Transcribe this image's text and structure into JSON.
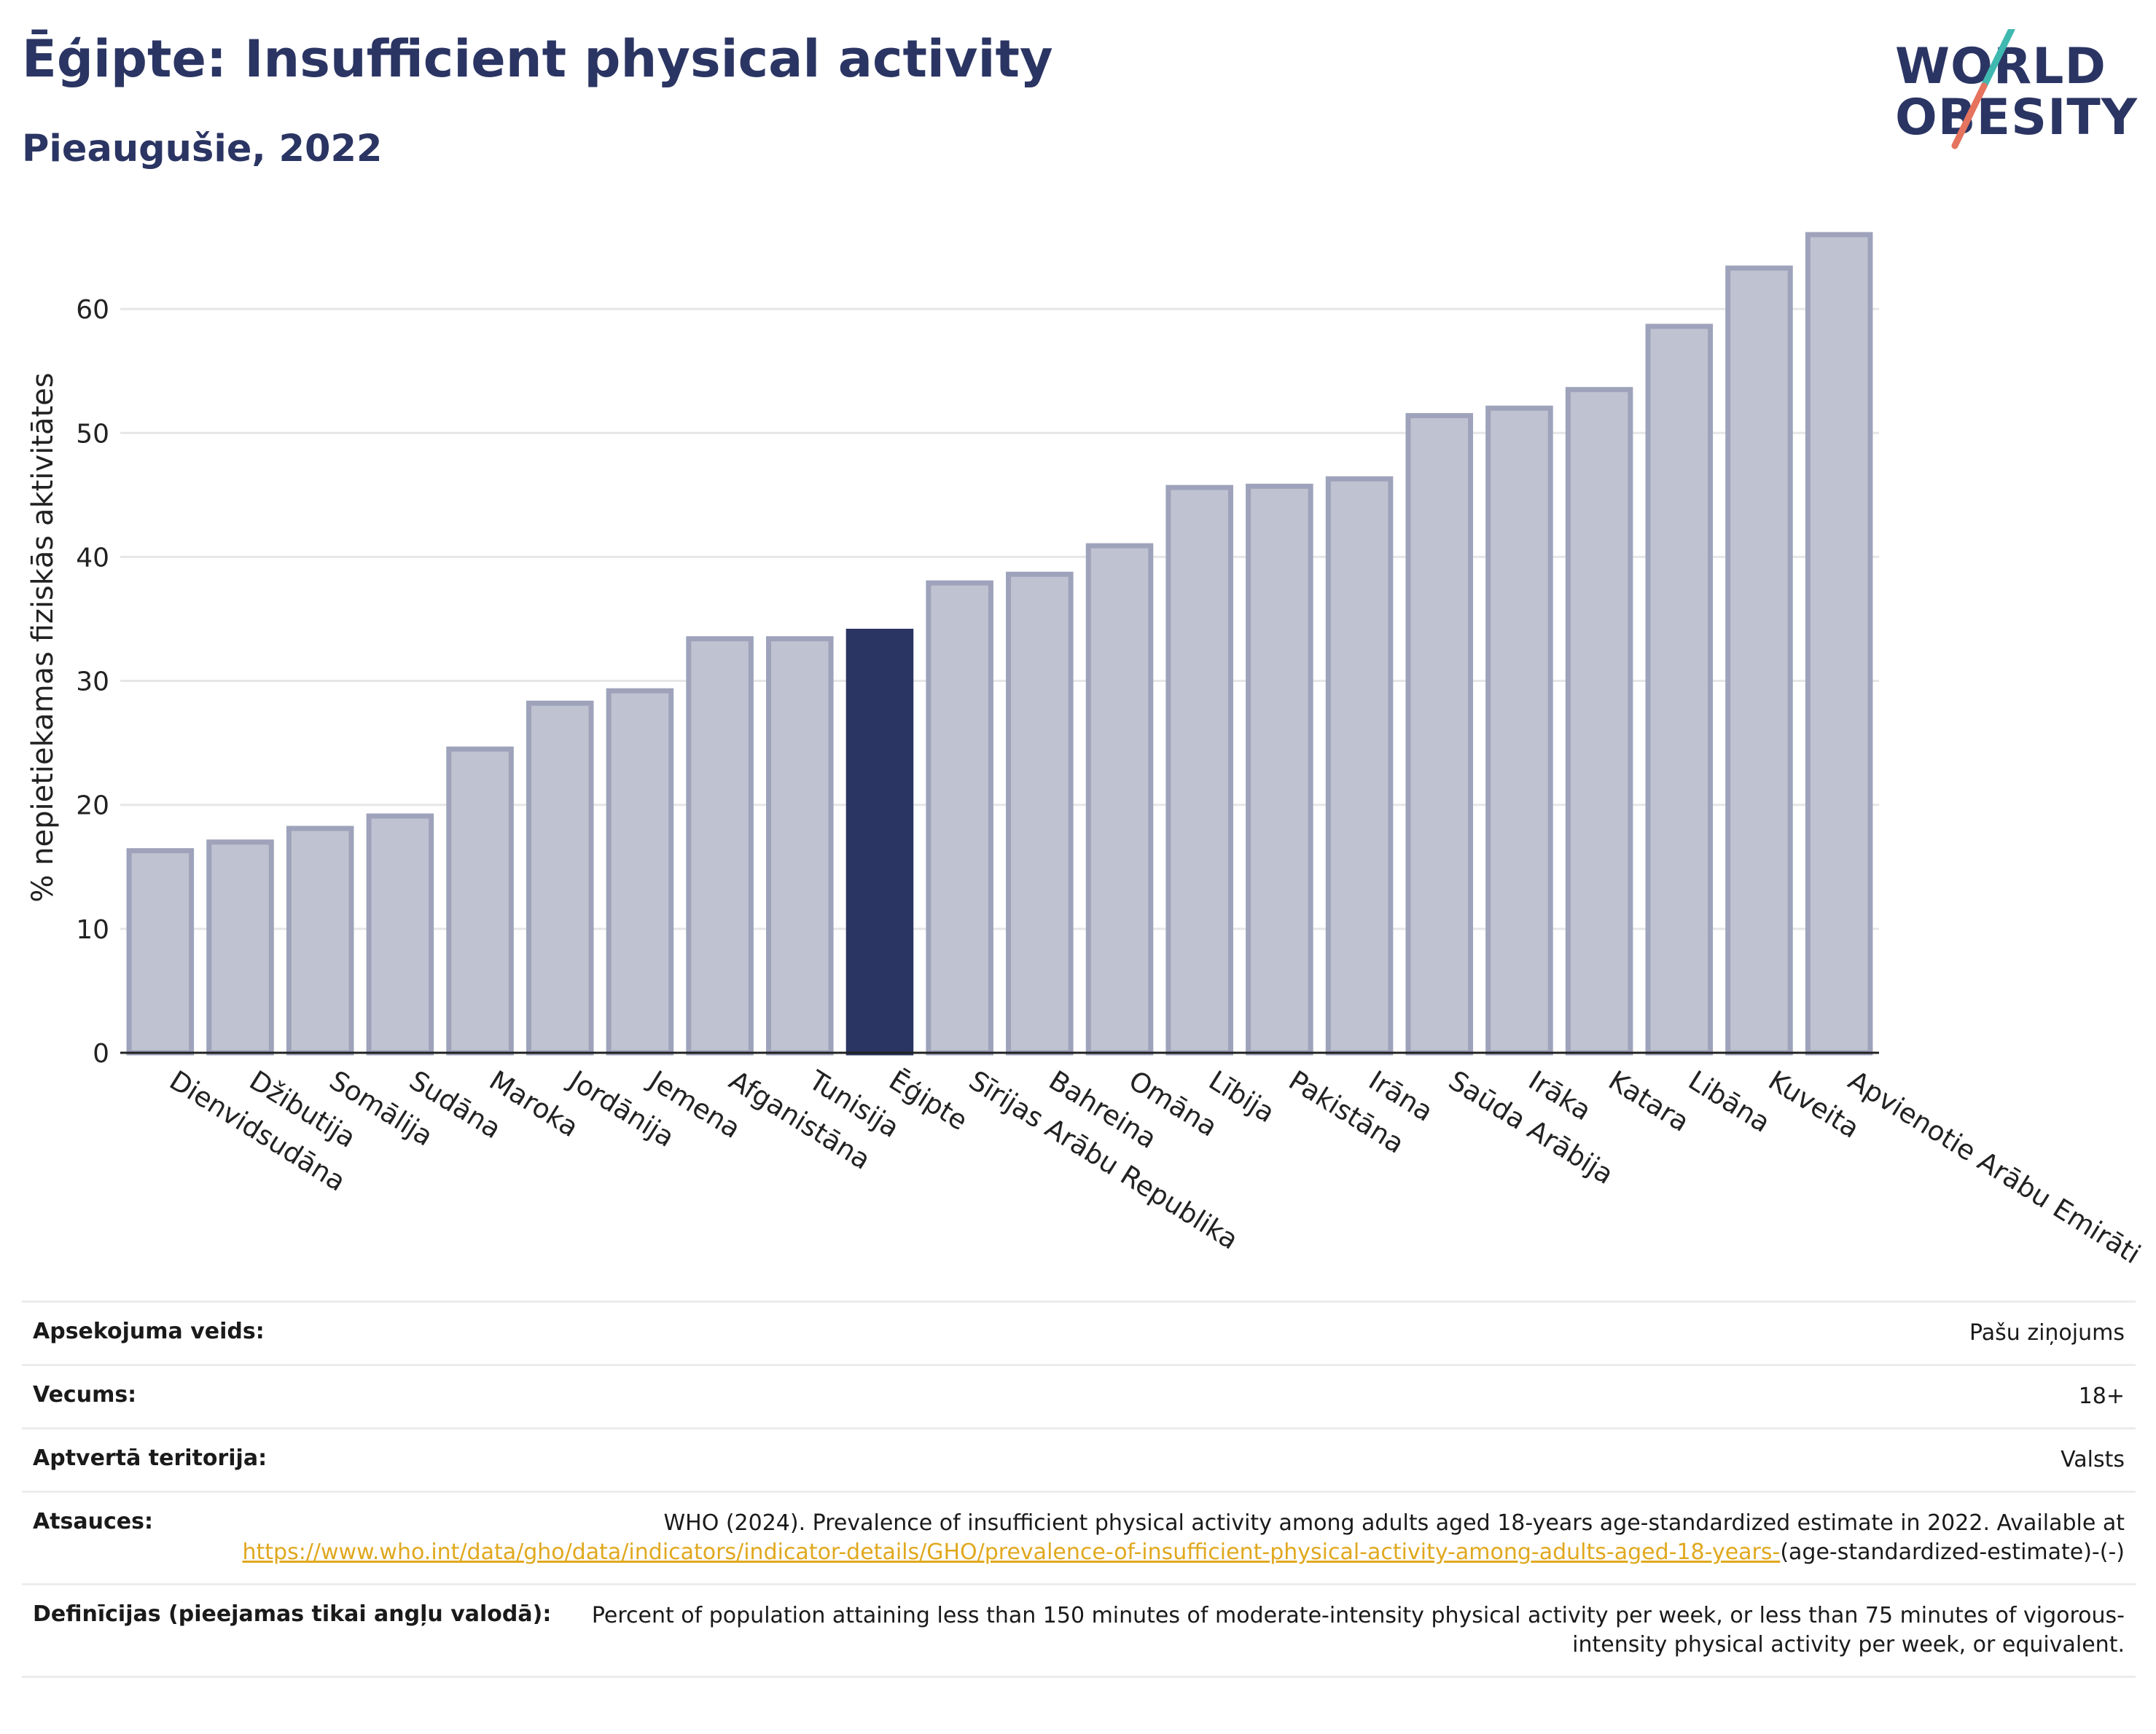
{
  "header": {
    "title": "Ēģipte: Insufficient physical activity",
    "subtitle": "Pieaugušie, 2022"
  },
  "logo": {
    "line1": "WORLD",
    "line2": "OBESITY"
  },
  "colors": {
    "highlight": "#2b3563",
    "bar": "#bfc2d0",
    "bar_stroke": "#9ea3bb",
    "logo_teal": "#3fb8b0",
    "logo_coral": "#e5735e"
  },
  "chart_data": {
    "type": "bar",
    "title": "",
    "xlabel": "",
    "ylabel": "% nepietiekamas fiziskās aktivitātes",
    "ylim": [
      0,
      67
    ],
    "yticks": [
      0,
      10,
      20,
      30,
      40,
      50,
      60
    ],
    "grid": true,
    "highlight": "Ēģipte",
    "categories": [
      "Dienvidsudāna",
      "Džibutija",
      "Somālija",
      "Sudāna",
      "Maroka",
      "Jordānija",
      "Jemena",
      "Afganistāna",
      "Tunisija",
      "Ēģipte",
      "Sīrijas Arābu Republika",
      "Bahreina",
      "Omāna",
      "Lībija",
      "Pakistāna",
      "Irāna",
      "Saūda Arābija",
      "Irāka",
      "Katara",
      "Libāna",
      "Kuveita",
      "Apvienotie Arābu Emirāti"
    ],
    "values": [
      16.3,
      17.0,
      18.1,
      19.1,
      24.5,
      28.2,
      29.2,
      33.4,
      33.4,
      34.0,
      37.9,
      38.6,
      40.9,
      45.6,
      45.7,
      46.3,
      51.4,
      52.0,
      53.5,
      58.6,
      63.3,
      66.0
    ]
  },
  "meta": {
    "rows": [
      {
        "label": "Apsekojuma veids:",
        "value": "Pašu ziņojums"
      },
      {
        "label": "Vecums:",
        "value": "18+"
      },
      {
        "label": "Aptvertā teritorija:",
        "value": "Valsts"
      }
    ],
    "sources_label": "Atsauces:",
    "sources_text": "WHO (2024). Prevalence of insufficient physical activity among adults aged 18-years age-standardized estimate in 2022. Available at",
    "sources_link": "https://www.who.int/data/gho/data/indicators/indicator-details/GHO/prevalence-of-insufficient-physical-activity-among-adults-aged-18-years-",
    "sources_suffix": "(age-standardized-estimate)-(-)",
    "definitions_label": "Definīcijas (pieejamas tikai angļu valodā):",
    "definitions_text": "Percent of population attaining less than 150 minutes of moderate-intensity physical activity per week, or less than 75 minutes of vigorous-intensity physical activity per week, or equivalent."
  }
}
